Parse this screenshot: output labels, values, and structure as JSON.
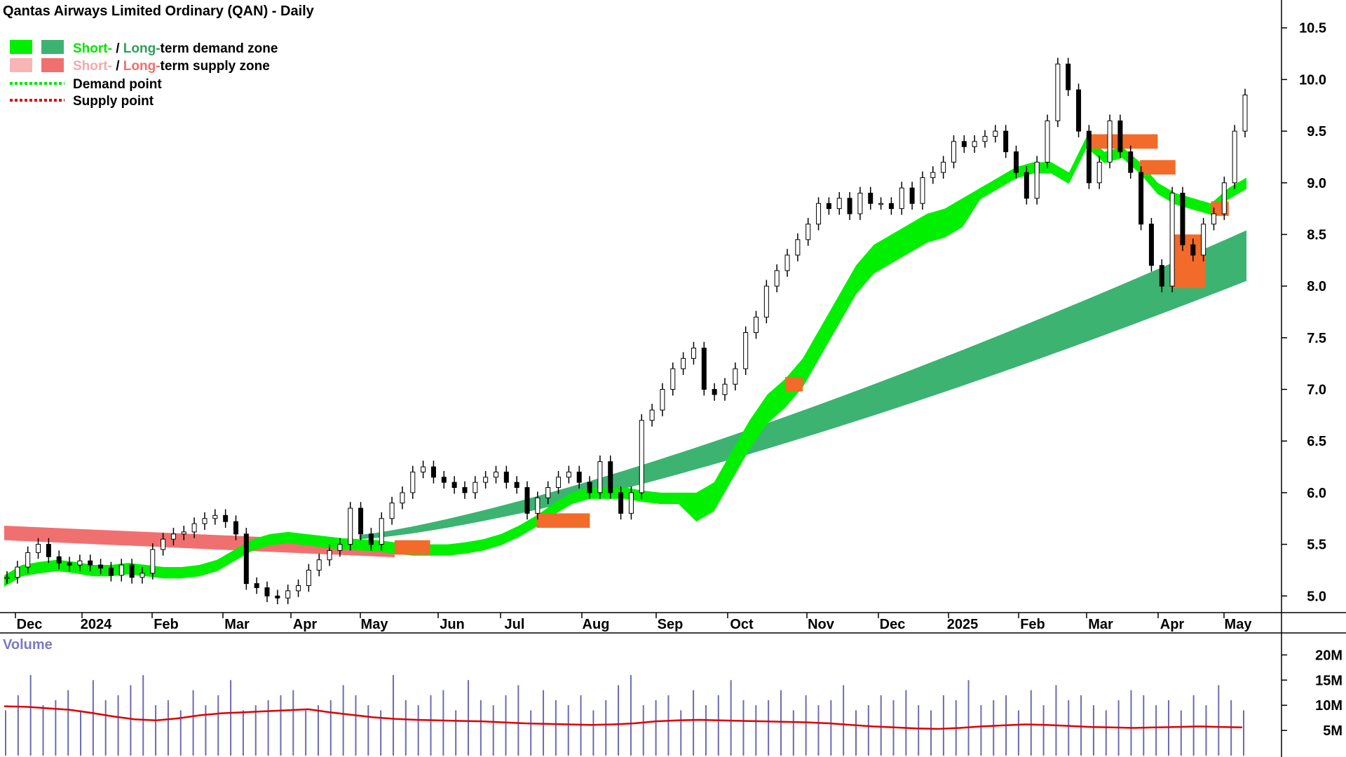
{
  "chart_data": {
    "type": "candlestick",
    "title": "Qantas Airways Limited Ordinary (QAN) - Daily",
    "legend": {
      "placement": "top-left",
      "items": [
        {
          "short_label": "Short-",
          "separator": " / ",
          "long_label": "Long-",
          "rest": "term demand zone",
          "short_color": "#00f000",
          "long_color": "#3cb371"
        },
        {
          "short_label": "Short-",
          "separator": " / ",
          "long_label": "Long-",
          "rest": "term supply zone",
          "short_color": "#f7b5b5",
          "long_color": "#f07070"
        },
        {
          "label": "Demand point",
          "color": "#00e800"
        },
        {
          "label": "Supply point",
          "color": "#e00000"
        }
      ]
    },
    "x_labels": [
      "Dec",
      "2024",
      "Feb",
      "Mar",
      "Apr",
      "May",
      "Jun",
      "Jul",
      "Aug",
      "Sep",
      "Oct",
      "Nov",
      "Dec",
      "2025",
      "Feb",
      "Mar",
      "Apr",
      "May"
    ],
    "y_ticks": [
      "10.5",
      "10.0",
      "9.5",
      "9.0",
      "8.5",
      "8.0",
      "7.5",
      "7.0",
      "6.5",
      "6.0",
      "5.5",
      "5.0"
    ],
    "ylim": [
      4.9,
      10.6
    ],
    "price_close": [
      5.18,
      5.28,
      5.42,
      5.5,
      5.38,
      5.32,
      5.3,
      5.34,
      5.3,
      5.27,
      5.2,
      5.3,
      5.18,
      5.22,
      5.45,
      5.55,
      5.6,
      5.62,
      5.7,
      5.75,
      5.78,
      5.72,
      5.6,
      5.12,
      5.08,
      5.0,
      4.98,
      5.05,
      5.1,
      5.25,
      5.35,
      5.44,
      5.5,
      5.85,
      5.6,
      5.5,
      5.75,
      5.9,
      6.0,
      6.2,
      6.25,
      6.15,
      6.1,
      6.05,
      6.0,
      6.1,
      6.15,
      6.2,
      6.1,
      6.05,
      5.8,
      5.95,
      6.05,
      6.15,
      6.2,
      6.1,
      6.0,
      6.3,
      6.0,
      5.8,
      6.0,
      6.7,
      6.8,
      7.0,
      7.2,
      7.3,
      7.4,
      7.0,
      6.95,
      7.05,
      7.2,
      7.55,
      7.7,
      8.0,
      8.15,
      8.3,
      8.45,
      8.6,
      8.8,
      8.75,
      8.85,
      8.7,
      8.9,
      8.8,
      8.8,
      8.75,
      8.95,
      8.8,
      9.05,
      9.1,
      9.2,
      9.4,
      9.35,
      9.4,
      9.45,
      9.5,
      9.3,
      9.1,
      8.85,
      9.2,
      9.6,
      10.15,
      9.9,
      9.5,
      9.0,
      9.2,
      9.6,
      9.3,
      9.1,
      8.6,
      8.2,
      8.0,
      8.9,
      8.4,
      8.3,
      8.6,
      8.7,
      9.0,
      9.5,
      9.85
    ],
    "demand_short_upper": [
      5.2,
      5.3,
      5.33,
      5.35,
      5.33,
      5.3,
      5.3,
      5.32,
      5.3,
      5.28,
      5.28,
      5.3,
      5.35,
      5.45,
      5.55,
      5.6,
      5.62,
      5.6,
      5.58,
      5.56,
      5.55,
      5.54,
      5.52,
      5.5,
      5.5,
      5.5,
      5.52,
      5.55,
      5.6,
      5.68,
      5.78,
      5.9,
      6.0,
      6.05,
      6.05,
      6.05,
      6.02,
      6.0,
      6.0,
      6.0,
      6.1,
      6.4,
      6.7,
      6.95,
      7.1,
      7.3,
      7.6,
      7.9,
      8.2,
      8.4,
      8.5,
      8.6,
      8.7,
      8.75,
      8.85,
      8.95,
      9.05,
      9.15,
      9.2,
      9.2,
      9.1,
      9.45,
      9.3,
      9.35,
      9.2,
      9.0,
      8.9,
      8.85,
      8.8,
      8.95,
      9.05
    ],
    "volume": [
      9,
      12,
      16,
      10,
      11,
      13,
      9,
      15,
      11,
      12,
      14,
      16,
      10,
      11,
      9,
      13,
      10,
      12,
      15,
      9,
      10,
      11,
      12,
      13,
      9,
      10,
      11,
      14,
      12,
      10,
      9,
      16,
      11,
      10,
      12,
      13,
      9,
      15,
      11,
      10,
      12,
      14,
      9,
      13,
      11,
      10,
      12,
      9,
      11,
      14,
      16,
      10,
      11,
      12,
      9,
      13,
      10,
      12,
      15,
      11,
      10,
      11,
      13,
      9,
      12,
      10,
      11,
      14,
      9,
      10,
      12,
      11,
      13,
      10,
      9,
      12,
      11,
      15,
      10,
      11,
      12,
      9,
      13,
      10,
      14,
      11,
      12,
      10,
      9,
      11,
      13,
      12,
      10,
      11,
      9,
      12,
      10,
      14,
      11,
      9
    ],
    "volume_avg": [
      9.8,
      9.7,
      9.4,
      9.1,
      8.5,
      7.8,
      7.2,
      7.0,
      7.4,
      8.0,
      8.4,
      8.6,
      8.8,
      9.0,
      9.2,
      8.6,
      8.1,
      7.6,
      7.3,
      7.1,
      7.0,
      6.9,
      6.8,
      6.6,
      6.4,
      6.3,
      6.2,
      6.1,
      6.2,
      6.4,
      6.8,
      7.0,
      7.1,
      7.0,
      6.9,
      6.8,
      6.7,
      6.6,
      6.4,
      6.1,
      5.8,
      5.6,
      5.4,
      5.3,
      5.5,
      5.8,
      6.0,
      6.2,
      6.1,
      5.9,
      5.7,
      5.6,
      5.5,
      5.6,
      5.7,
      5.8,
      5.7,
      5.6
    ],
    "volume_title": "Volume",
    "volume_ticks": [
      "20M",
      "15M",
      "10M",
      "5M"
    ]
  }
}
